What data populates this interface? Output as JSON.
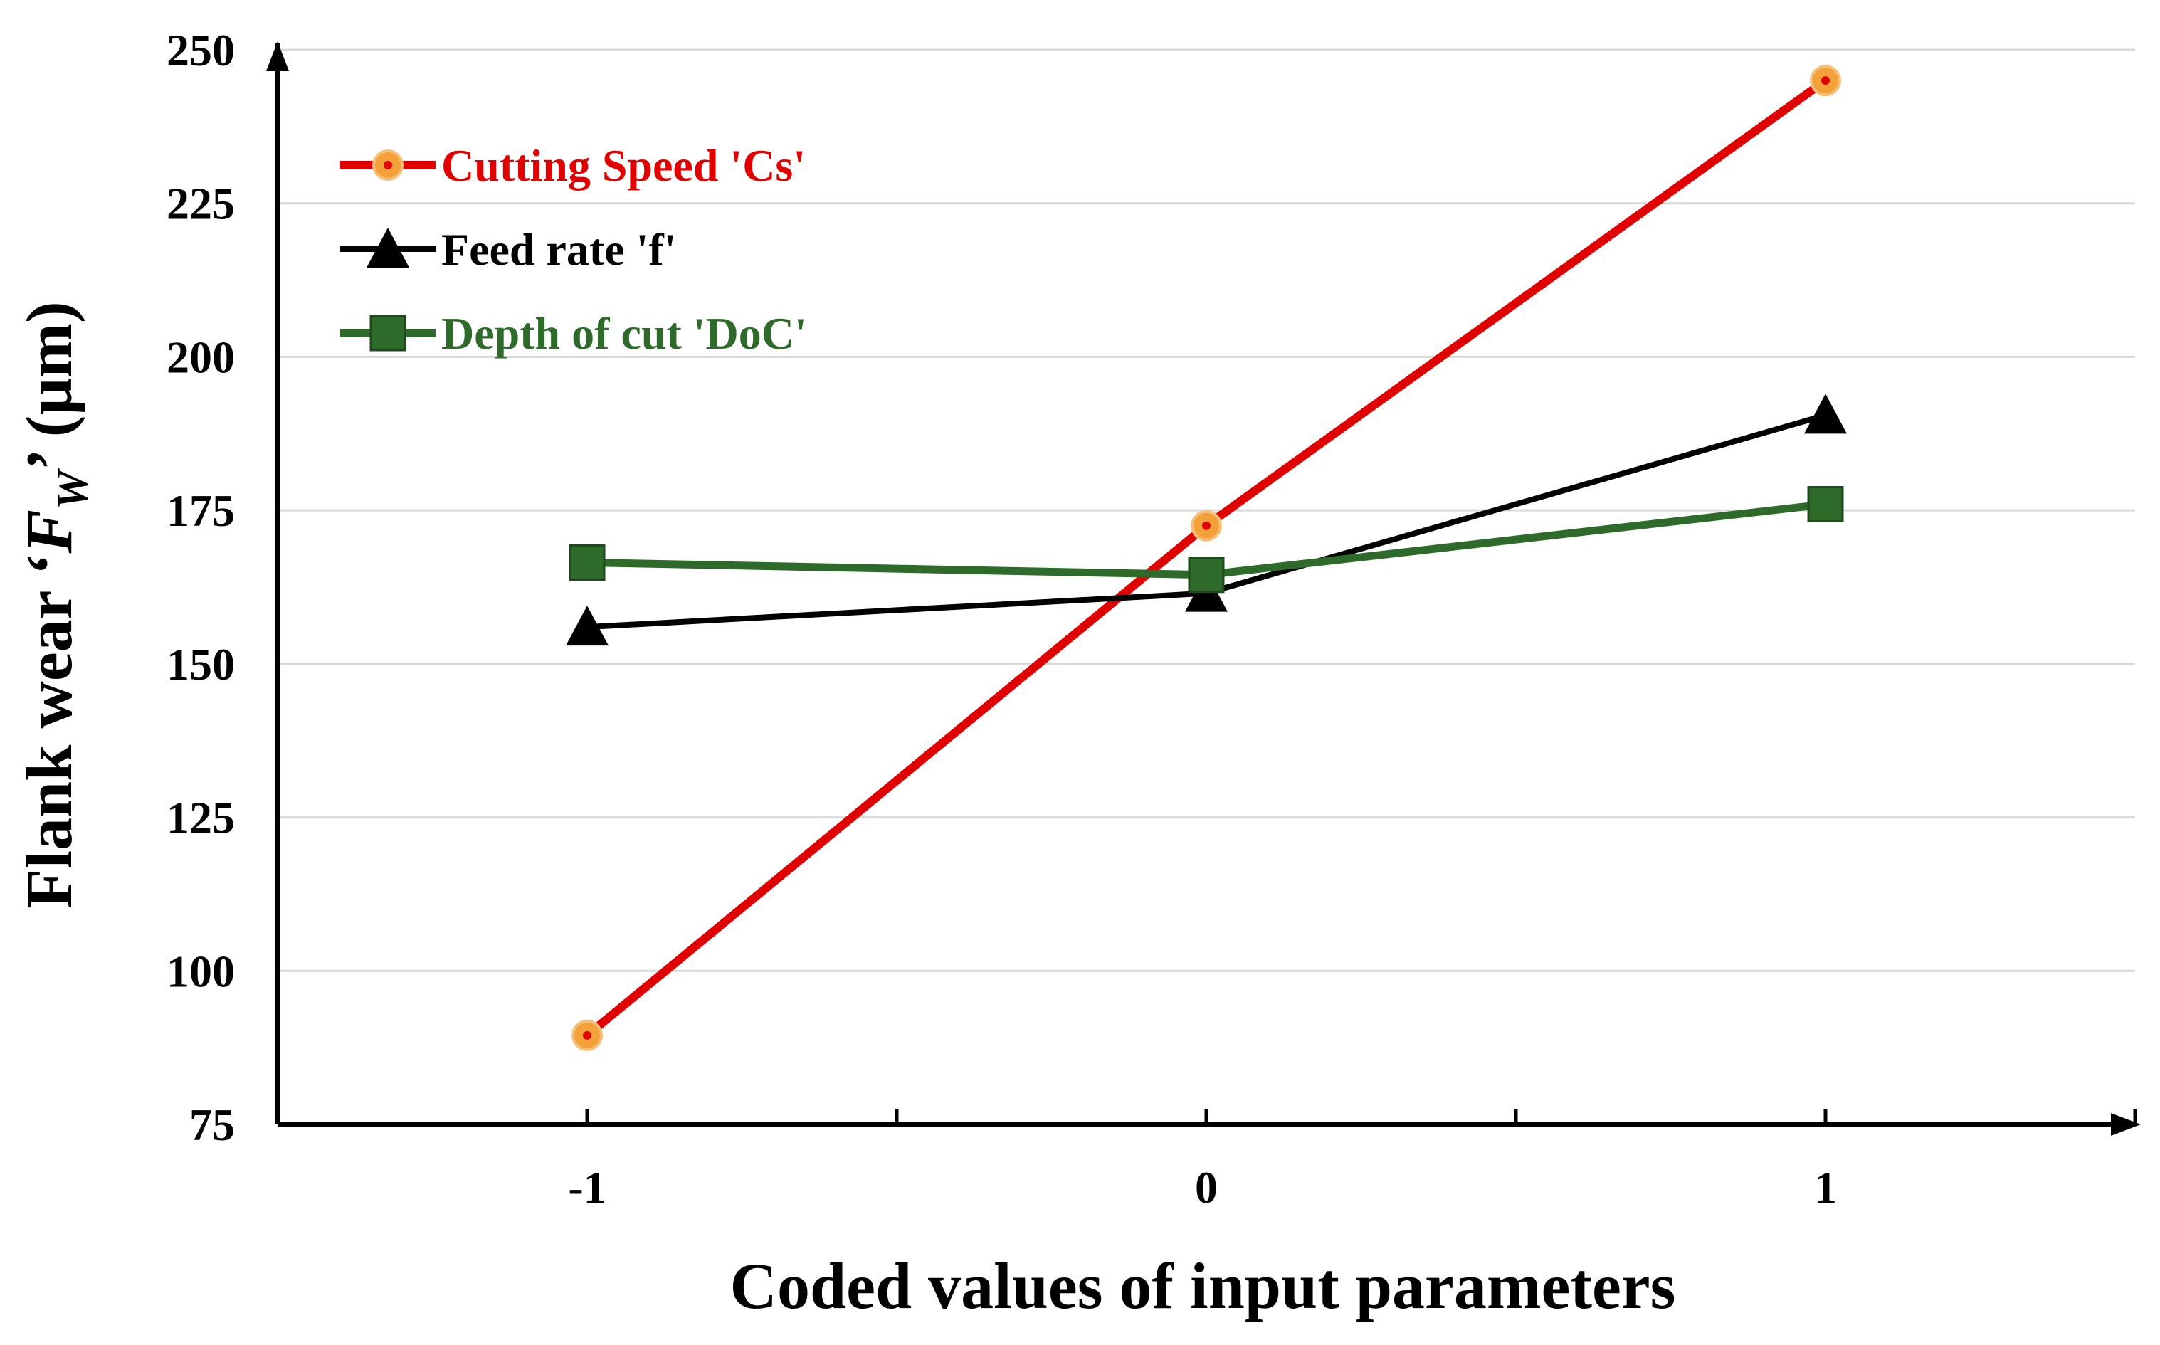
{
  "chart_data": {
    "type": "line",
    "title": "",
    "xlabel": "Coded values of input parameters",
    "ylabel": {
      "prefix": "Flank wear ‘",
      "symbol": "F",
      "subscript": "W",
      "suffix": "’ (µm)"
    },
    "x": [
      -1,
      0,
      1
    ],
    "x_tick_labels": [
      "-1",
      "0",
      "1"
    ],
    "xlim": [
      -1.5,
      1.5
    ],
    "ylim": [
      75,
      250
    ],
    "y_ticks": [
      75,
      100,
      125,
      150,
      175,
      200,
      225,
      250
    ],
    "y_tick_labels": [
      "75",
      "100",
      "125",
      "150",
      "175",
      "200",
      "225",
      "250"
    ],
    "grid": "horizontal",
    "legend_position": "top-left",
    "series": [
      {
        "name": "Cutting Speed 'Cs'",
        "values": [
          89.5,
          172.5,
          245
        ],
        "color": "#e00000",
        "marker": "circle",
        "marker_fill": "#f5a13a",
        "label_color": "#e00000"
      },
      {
        "name": "Feed rate 'f'",
        "values": [
          156,
          161.5,
          190.5
        ],
        "color": "#000000",
        "marker": "triangle",
        "marker_fill": "#000000",
        "label_color": "#000000"
      },
      {
        "name": "Depth of cut 'DoC'",
        "values": [
          166.5,
          164.5,
          176
        ],
        "color": "#2e6b2a",
        "marker": "square",
        "marker_fill": "#2e6b2a",
        "label_color": "#2e6b2a"
      }
    ]
  }
}
